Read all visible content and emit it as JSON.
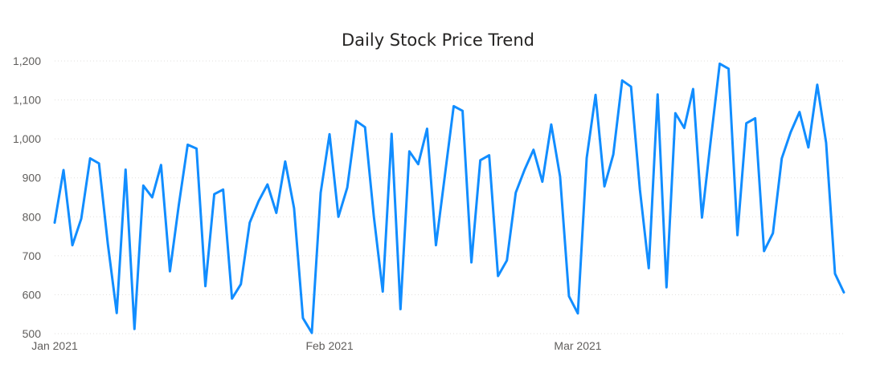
{
  "chart_data": {
    "type": "line",
    "title": "Daily Stock Price Trend",
    "xlabel": "",
    "ylabel": "",
    "x_start": "2021-01-01",
    "x_end": "2021-03-31",
    "x_ticks": [
      {
        "date": "2021-01-01",
        "label": "Jan 2021"
      },
      {
        "date": "2021-02-01",
        "label": "Feb 2021"
      },
      {
        "date": "2021-03-01",
        "label": "Mar 2021"
      }
    ],
    "ylim": [
      500,
      1200
    ],
    "y_ticks": [
      {
        "value": 500,
        "label": "500"
      },
      {
        "value": 600,
        "label": "600"
      },
      {
        "value": 700,
        "label": "700"
      },
      {
        "value": 800,
        "label": "800"
      },
      {
        "value": 900,
        "label": "900"
      },
      {
        "value": 1000,
        "label": "1,000"
      },
      {
        "value": 1100,
        "label": "1,100"
      },
      {
        "value": 1200,
        "label": "1,200"
      }
    ],
    "grid": true,
    "legend": "none",
    "series": [
      {
        "color": "#118dff",
        "x": [
          "2021-01-01",
          "2021-01-02",
          "2021-01-03",
          "2021-01-04",
          "2021-01-05",
          "2021-01-06",
          "2021-01-07",
          "2021-01-08",
          "2021-01-09",
          "2021-01-10",
          "2021-01-11",
          "2021-01-12",
          "2021-01-13",
          "2021-01-14",
          "2021-01-15",
          "2021-01-16",
          "2021-01-17",
          "2021-01-18",
          "2021-01-19",
          "2021-01-20",
          "2021-01-21",
          "2021-01-22",
          "2021-01-23",
          "2021-01-24",
          "2021-01-25",
          "2021-01-26",
          "2021-01-27",
          "2021-01-28",
          "2021-01-29",
          "2021-01-30",
          "2021-01-31",
          "2021-02-01",
          "2021-02-02",
          "2021-02-03",
          "2021-02-04",
          "2021-02-05",
          "2021-02-06",
          "2021-02-07",
          "2021-02-08",
          "2021-02-09",
          "2021-02-10",
          "2021-02-11",
          "2021-02-12",
          "2021-02-13",
          "2021-02-14",
          "2021-02-15",
          "2021-02-16",
          "2021-02-17",
          "2021-02-18",
          "2021-02-19",
          "2021-02-20",
          "2021-02-21",
          "2021-02-22",
          "2021-02-23",
          "2021-02-24",
          "2021-02-25",
          "2021-02-26",
          "2021-02-27",
          "2021-02-28",
          "2021-03-01",
          "2021-03-02",
          "2021-03-03",
          "2021-03-04",
          "2021-03-05",
          "2021-03-06",
          "2021-03-07",
          "2021-03-08",
          "2021-03-09",
          "2021-03-10",
          "2021-03-11",
          "2021-03-12",
          "2021-03-13",
          "2021-03-14",
          "2021-03-15",
          "2021-03-16",
          "2021-03-17",
          "2021-03-18",
          "2021-03-19",
          "2021-03-20",
          "2021-03-21",
          "2021-03-22",
          "2021-03-23",
          "2021-03-24",
          "2021-03-25",
          "2021-03-26",
          "2021-03-27",
          "2021-03-28",
          "2021-03-29",
          "2021-03-30",
          "2021-03-31"
        ],
        "values": [
          785,
          920,
          727,
          795,
          950,
          937,
          730,
          553,
          921,
          512,
          880,
          850,
          933,
          660,
          830,
          985,
          975,
          622,
          858,
          870,
          590,
          627,
          785,
          840,
          883,
          810,
          942,
          822,
          540,
          502,
          862,
          1012,
          800,
          875,
          1046,
          1030,
          800,
          608,
          1013,
          563,
          968,
          935,
          1026,
          727,
          905,
          1084,
          1072,
          683,
          945,
          958,
          648,
          688,
          862,
          921,
          972,
          890,
          1037,
          903,
          596,
          552,
          951,
          1113,
          878,
          960,
          1150,
          1134,
          870,
          668,
          1114,
          619,
          1066,
          1028,
          1128,
          798,
          998,
          1193,
          1180,
          753,
          1040,
          1053,
          712,
          758,
          950,
          1017,
          1069,
          978,
          1139,
          990,
          654,
          606
        ]
      }
    ]
  }
}
